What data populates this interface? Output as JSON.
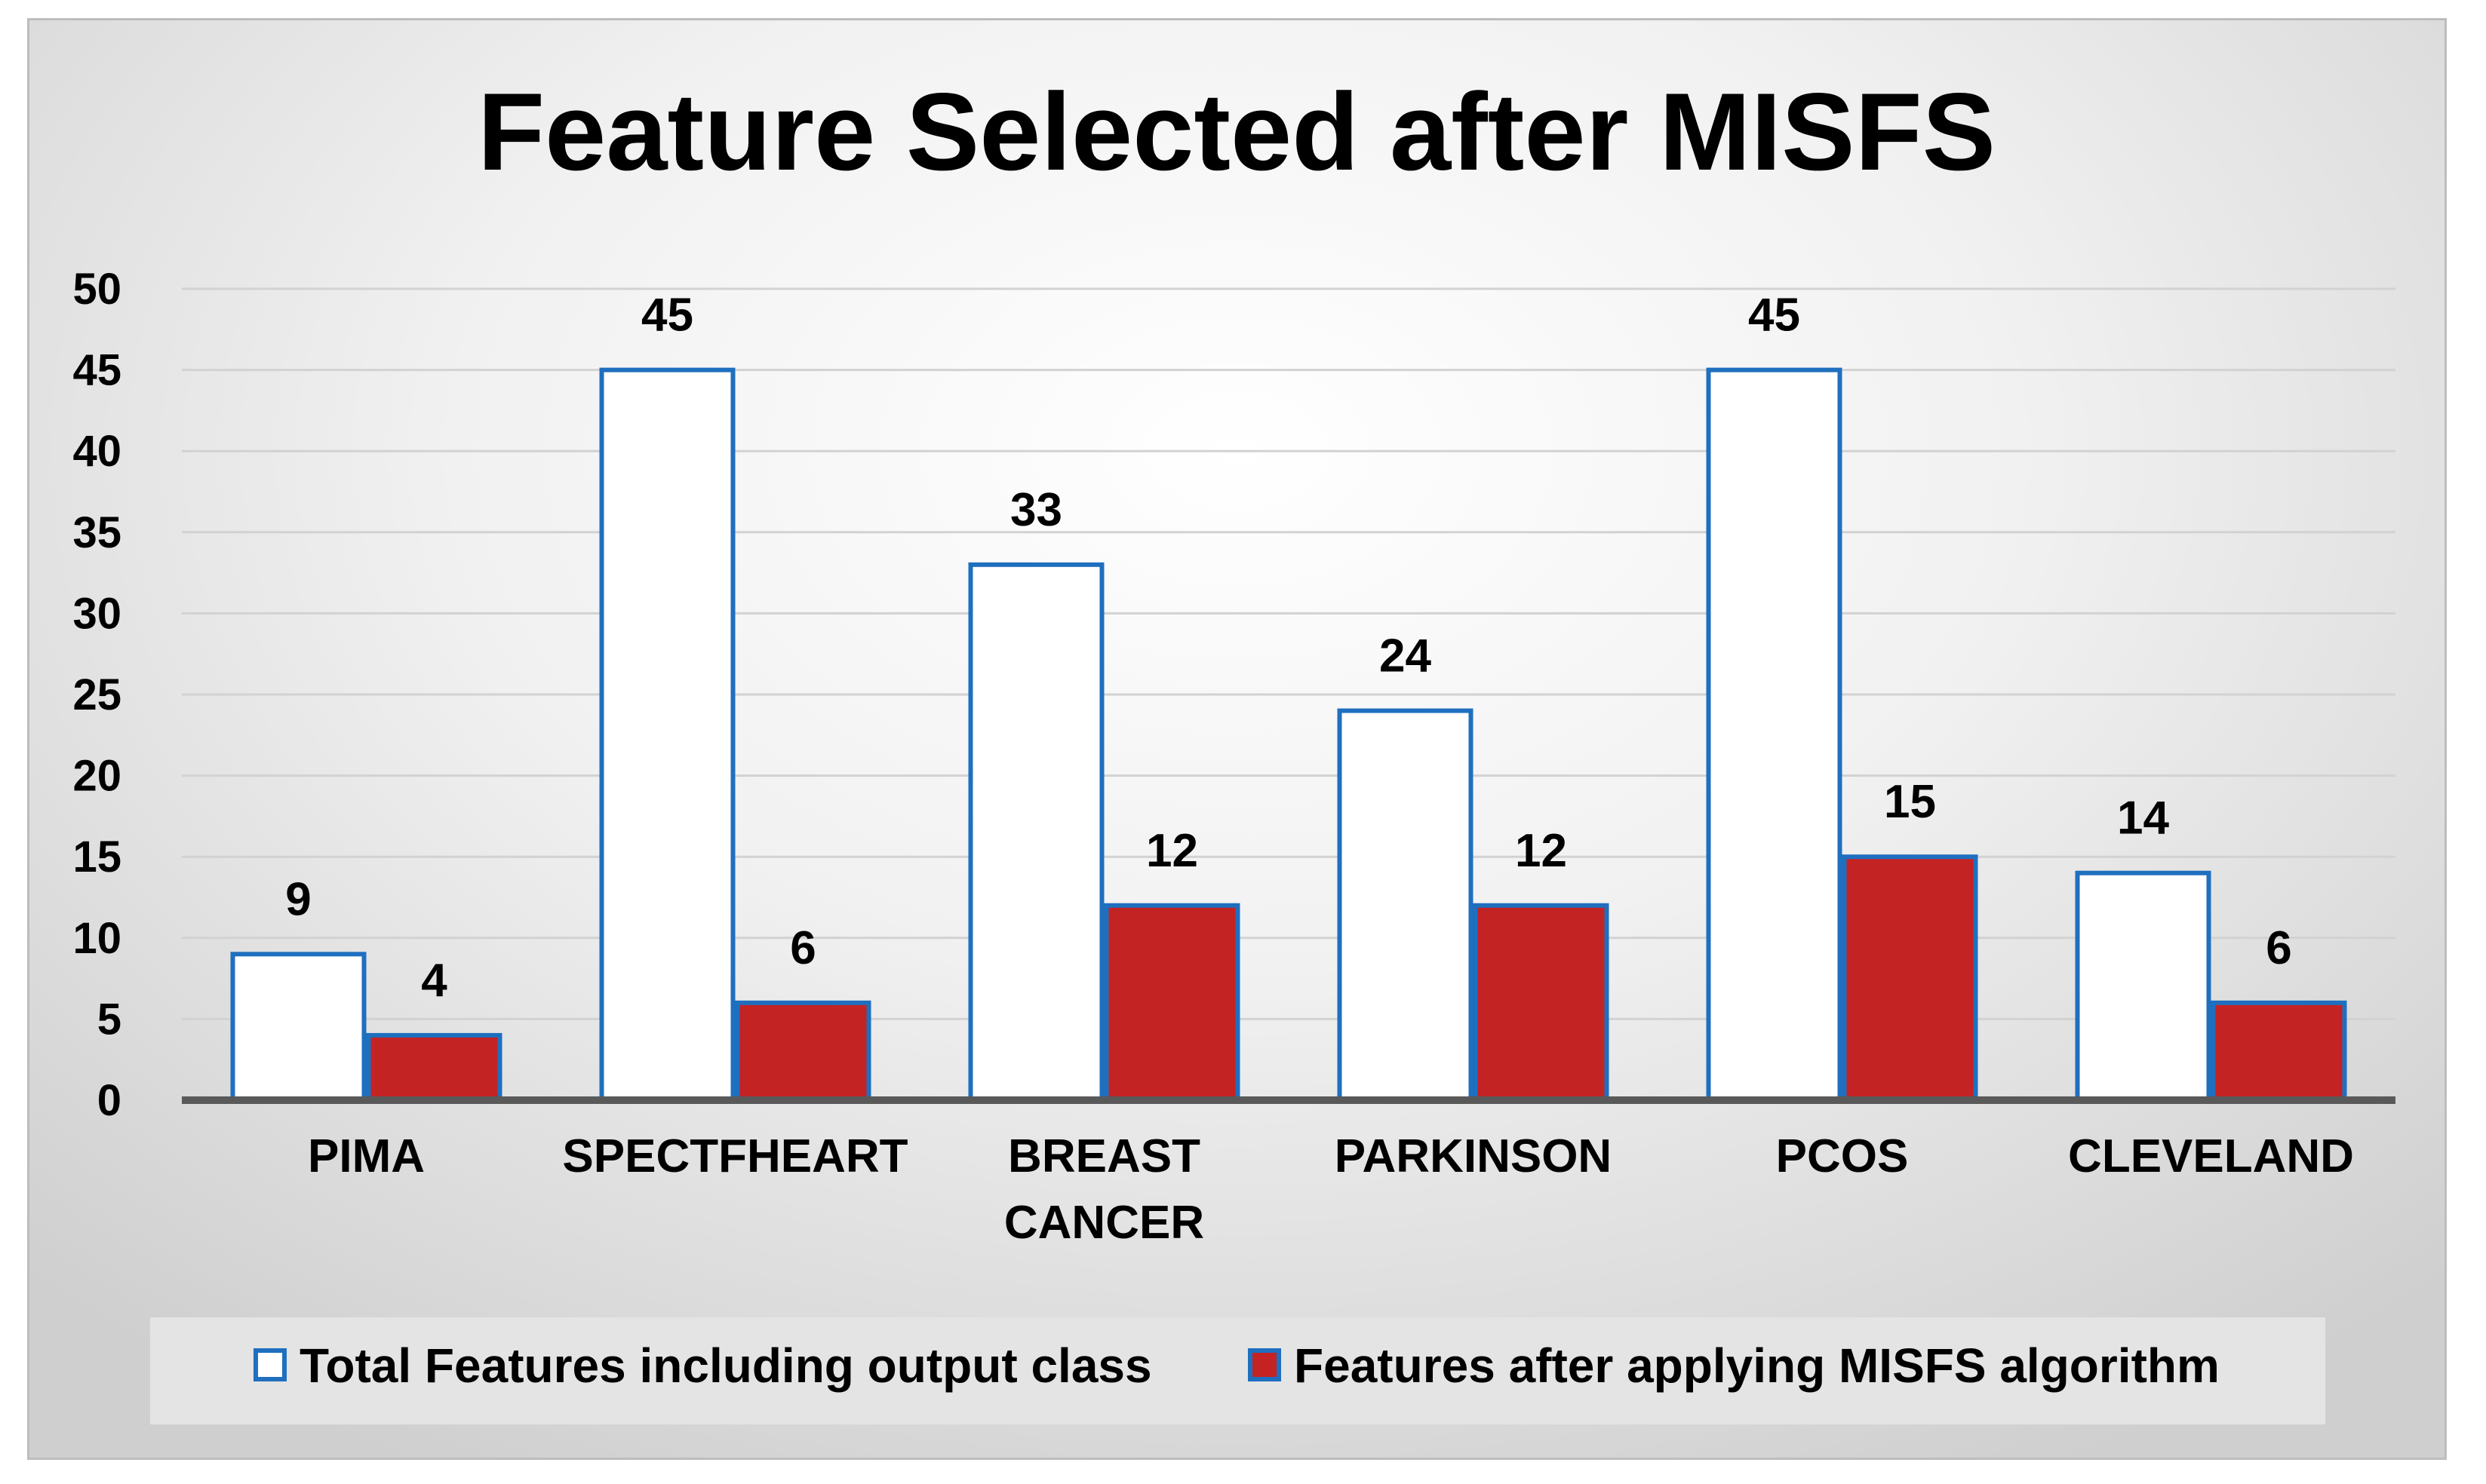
{
  "chart_data": {
    "type": "bar",
    "title": "Feature Selected after MISFS",
    "xlabel": "",
    "ylabel": "",
    "categories": [
      "PIMA",
      "SPECTFHEART",
      "BREAST\nCANCER",
      "PARKINSON",
      "PCOS",
      "CLEVELAND"
    ],
    "series": [
      {
        "name": "Total Features including output class",
        "values": [
          9,
          45,
          33,
          24,
          45,
          14
        ],
        "fill": "#ffffff",
        "stroke": "#1f6fbf"
      },
      {
        "name": "Features after applying MISFS algorithm",
        "values": [
          4,
          6,
          12,
          12,
          15,
          6
        ],
        "fill": "#c42323",
        "stroke": "#1f6fbf"
      }
    ],
    "ylim": [
      0,
      50
    ],
    "yticks": [
      0,
      5,
      10,
      15,
      20,
      25,
      30,
      35,
      40,
      45,
      50
    ],
    "grid": true,
    "legend": "bottom",
    "data_labels": true
  }
}
